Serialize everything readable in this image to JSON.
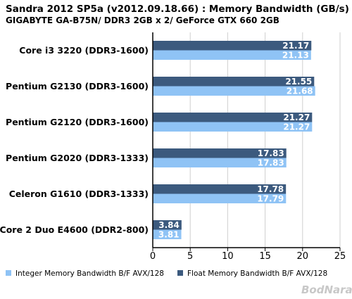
{
  "chart_data": {
    "type": "bar",
    "orientation": "horizontal",
    "title": "Sandra 2012 SP5a (v2012.09.18.66) : Memory Bandwidth (GB/s)",
    "subtitle": "GIGABYTE GA-B75N/ DDR3 2GB x 2/ GeForce GTX 660 2GB",
    "categories": [
      "Core i3 3220 (DDR3-1600)",
      "Pentium G2130 (DDR3-1600)",
      "Pentium G2120 (DDR3-1600)",
      "Pentium G2020 (DDR3-1333)",
      "Celeron G1610 (DDR3-1333)",
      "Core 2 Duo E4600 (DDR2-800)"
    ],
    "series": [
      {
        "name": "Float Memory Bandwidth B/F AVX/128",
        "color": "#3c5a7e",
        "values": [
          21.17,
          21.55,
          21.27,
          17.83,
          17.78,
          3.84
        ]
      },
      {
        "name": "Integer Memory Bandwidth B/F AVX/128",
        "color": "#8fc3f5",
        "values": [
          21.13,
          21.68,
          21.27,
          17.83,
          17.79,
          3.81
        ]
      }
    ],
    "xlim": [
      0,
      25
    ],
    "xticks": [
      "0",
      "5",
      "10",
      "15",
      "20",
      "25"
    ],
    "grid": true,
    "legend_position": "bottom",
    "legend_order": [
      "Integer Memory Bandwidth B/F AVX/128",
      "Float Memory Bandwidth B/F AVX/128"
    ]
  },
  "watermark": "BodNara",
  "colors": {
    "grid": "#cfcfcf",
    "axis": "#000000",
    "float": "#3c5a7e",
    "integer": "#8fc3f5"
  }
}
